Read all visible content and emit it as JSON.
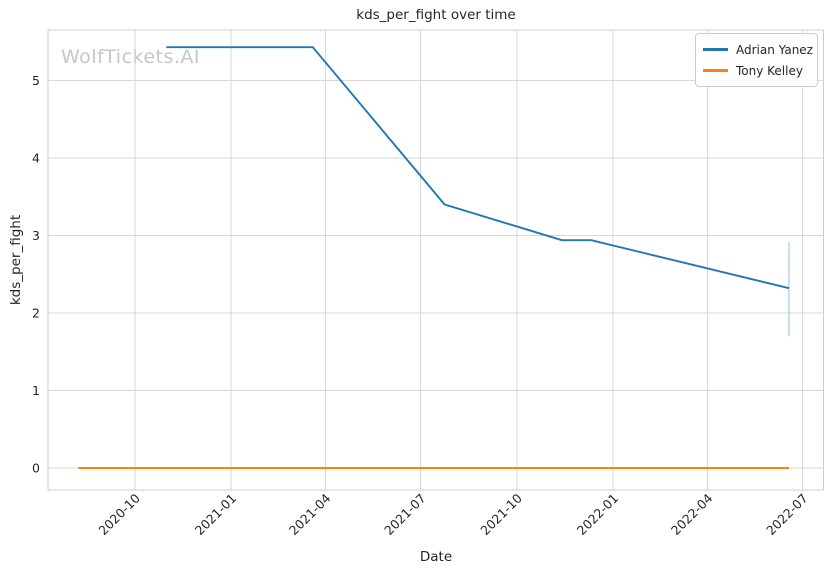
{
  "watermark": "WolfTickets.AI",
  "colors": {
    "background": "#ffffff",
    "grid": "#d9d9d9",
    "spine": "#cccccc",
    "text": "#262626",
    "watermark": "#c6c6c6",
    "series_blue": "#1f77b4",
    "series_orange": "#ff7f0e",
    "error_bar": "#b3d0e8"
  },
  "chart_data": {
    "type": "line",
    "title": "kds_per_fight over time",
    "xlabel": "Date",
    "ylabel": "kds_per_fight",
    "grid": true,
    "legend_position": "upper right",
    "x_axis": {
      "min": "2020-07-10",
      "max": "2022-07-21",
      "ticks": [
        "2020-10",
        "2021-01",
        "2021-04",
        "2021-07",
        "2021-10",
        "2022-01",
        "2022-04",
        "2022-07"
      ]
    },
    "y_axis": {
      "min": -0.284,
      "max": 5.652,
      "ticks": [
        0,
        1,
        2,
        3,
        4,
        5
      ]
    },
    "series": [
      {
        "name": "Adrian Yanez",
        "color": "#1f77b4",
        "points": [
          [
            "2020-10-31",
            5.43
          ],
          [
            "2021-03-20",
            5.43
          ],
          [
            "2021-07-24",
            3.4
          ],
          [
            "2021-11-13",
            2.94
          ],
          [
            "2021-12-11",
            2.94
          ],
          [
            "2022-06-18",
            2.32
          ]
        ]
      },
      {
        "name": "Tony Kelley",
        "color": "#ff7f0e",
        "points": [
          [
            "2020-08-08",
            0
          ],
          [
            "2022-06-18",
            0
          ]
        ]
      }
    ],
    "error_bar": {
      "series": "Adrian Yanez",
      "x": "2022-06-18",
      "low": 1.7,
      "high": 2.92,
      "color": "#b3d0e8"
    }
  }
}
